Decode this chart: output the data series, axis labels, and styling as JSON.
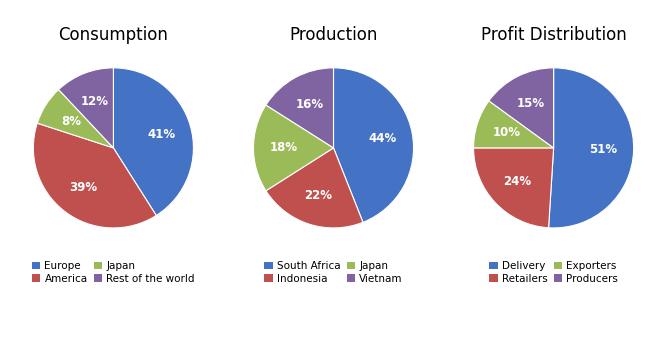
{
  "charts": [
    {
      "title": "Consumption",
      "labels": [
        "Europe",
        "America",
        "Japan",
        "Rest of the world"
      ],
      "values": [
        41,
        39,
        8,
        12
      ],
      "colors": [
        "#4472C4",
        "#C0504D",
        "#9BBB59",
        "#8064A2"
      ]
    },
    {
      "title": "Production",
      "labels": [
        "South Africa",
        "Indonesia",
        "Japan",
        "Vietnam"
      ],
      "values": [
        44,
        22,
        18,
        16
      ],
      "colors": [
        "#4472C4",
        "#C0504D",
        "#9BBB59",
        "#8064A2"
      ]
    },
    {
      "title": "Profit Distribution",
      "labels": [
        "Delivery",
        "Retailers",
        "Exporters",
        "Producers"
      ],
      "values": [
        51,
        24,
        10,
        15
      ],
      "colors": [
        "#4472C4",
        "#C0504D",
        "#9BBB59",
        "#8064A2"
      ]
    }
  ],
  "background_color": "#FFFFFF",
  "title_fontsize": 12,
  "label_fontsize": 8.5,
  "legend_fontsize": 7.5
}
